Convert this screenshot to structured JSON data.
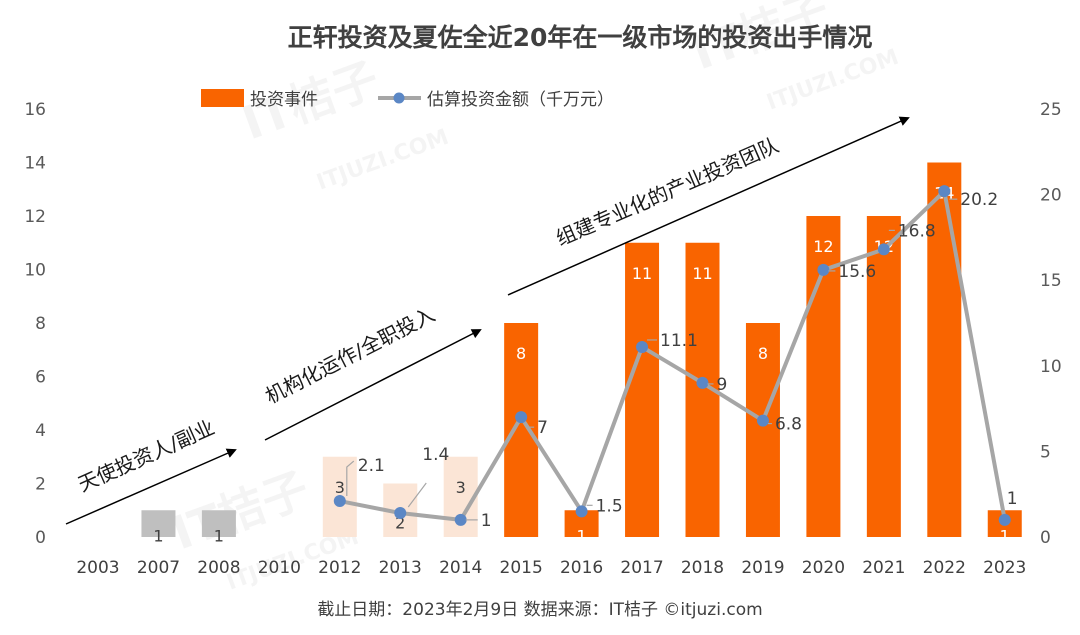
{
  "chart_data": {
    "type": "bar",
    "title": "正轩投资及夏佐全近20年在一级市场的投资出手情况",
    "categories": [
      "2003",
      "2007",
      "2008",
      "2010",
      "2012",
      "2013",
      "2014",
      "2015",
      "2016",
      "2017",
      "2018",
      "2019",
      "2020",
      "2021",
      "2022",
      "2023"
    ],
    "series": [
      {
        "name": "投资事件",
        "type": "bar",
        "axis": "left",
        "values": [
          0,
          1,
          1,
          0,
          3,
          2,
          3,
          8,
          1,
          11,
          11,
          8,
          12,
          12,
          14,
          1
        ],
        "labels": [
          "",
          "1",
          "1",
          "",
          "3",
          "2",
          "3",
          "8",
          "1",
          "11",
          "11",
          "8",
          "12",
          "12",
          "14",
          "1"
        ],
        "colors": [
          "#bfbfbf",
          "#bfbfbf",
          "#bfbfbf",
          "#fbe5d6",
          "#fbe5d6",
          "#fbe5d6",
          "#fbe5d6",
          "#f96400",
          "#f96400",
          "#f96400",
          "#f96400",
          "#f96400",
          "#f96400",
          "#f96400",
          "#f96400",
          "#f96400"
        ]
      },
      {
        "name": "估算投资金额（千万元）",
        "type": "line",
        "axis": "right",
        "color": "#a6a6a6",
        "marker_color": "#5b87c5",
        "points": [
          {
            "cat": "2012",
            "y": 2.1,
            "label": "2.1"
          },
          {
            "cat": "2013",
            "y": 1.4,
            "label": "1.4"
          },
          {
            "cat": "2014",
            "y": 1.0,
            "label": "1"
          },
          {
            "cat": "2015",
            "y": 7.0,
            "label": "7"
          },
          {
            "cat": "2016",
            "y": 1.5,
            "label": "1.5"
          },
          {
            "cat": "2017",
            "y": 11.1,
            "label": "11.1"
          },
          {
            "cat": "2018",
            "y": 9.0,
            "label": "9"
          },
          {
            "cat": "2019",
            "y": 6.8,
            "label": "6.8"
          },
          {
            "cat": "2020",
            "y": 15.6,
            "label": "15.6"
          },
          {
            "cat": "2021",
            "y": 16.8,
            "label": "16.8"
          },
          {
            "cat": "2022",
            "y": 20.2,
            "label": "20.2"
          },
          {
            "cat": "2023",
            "y": 1.0,
            "label": "1"
          }
        ]
      }
    ],
    "y_left": {
      "min": 0,
      "max": 16,
      "ticks": [
        "0",
        "2",
        "4",
        "6",
        "8",
        "10",
        "12",
        "14",
        "16"
      ]
    },
    "y_right": {
      "min": 0,
      "max": 25,
      "ticks": [
        "0",
        "5",
        "10",
        "15",
        "20",
        "25"
      ]
    },
    "grid": false,
    "legend_position": "top-center",
    "annotations": [
      "天使投资人/副业",
      "机构化运作/全职投入",
      "组建专业化的产业投资团队"
    ],
    "footer": "截止日期：2023年2月9日    数据来源：IT桔子 ©itjuzi.com",
    "watermark": [
      "IT桔子",
      "ITJUZI.COM"
    ]
  }
}
